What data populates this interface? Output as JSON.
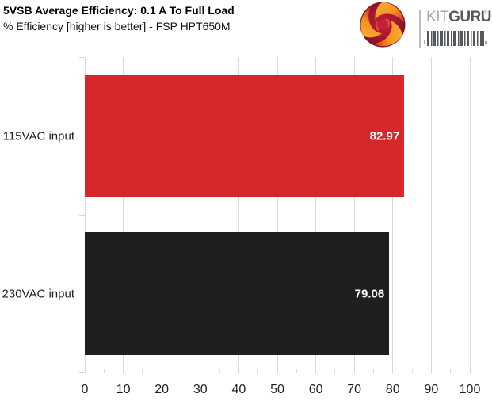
{
  "chart_data": {
    "type": "bar",
    "orientation": "horizontal",
    "title": "5VSB Average Efficiency: 0.1 A To Full Load",
    "subtitle": "% Efficiency [higher is better] - FSP HPT650M",
    "categories": [
      "115VAC input",
      "230VAC input"
    ],
    "values": [
      82.97,
      79.06
    ],
    "value_labels": [
      "82.97",
      "79.06"
    ],
    "bar_colors": [
      "#d6282b",
      "#211e1f"
    ],
    "value_label_color": "#ffffff",
    "xlim": [
      0,
      100
    ],
    "x_ticks": [
      0,
      10,
      20,
      30,
      40,
      50,
      60,
      70,
      80,
      90,
      100
    ],
    "x_tick_step": 10,
    "minor_tick_step": 5,
    "grid": true,
    "gridline_color": "#d9d9d9",
    "axis_line_color": "#d9d9d9",
    "axis_label_color": "#1f1f1f",
    "legend": "none"
  },
  "logo": {
    "name": "KitGuru",
    "kit": "KIT",
    "guru": "GURU",
    "registered_mark": "®",
    "barcode_digit_left": "1",
    "barcode_digit_right": "0",
    "swirl_colors": {
      "orange": "#f6921e",
      "light_orange": "#fbb040",
      "red": "#d2232a",
      "magenta": "#c2203c",
      "dark": "#7a1024"
    }
  }
}
